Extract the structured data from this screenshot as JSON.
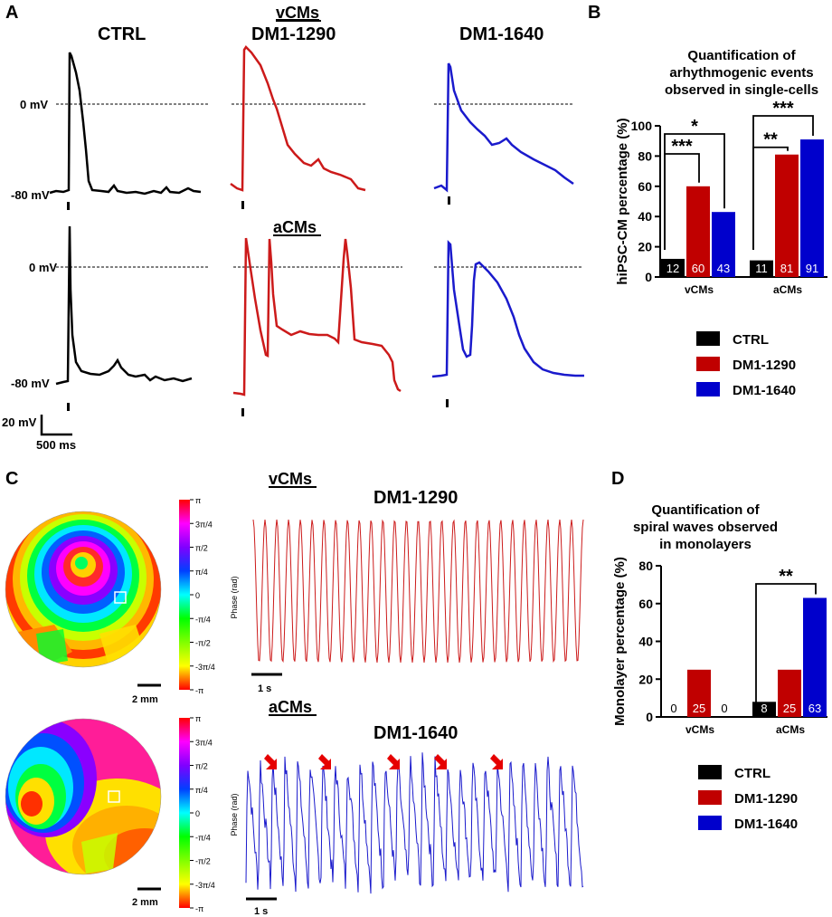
{
  "panels": {
    "A": "A",
    "B": "B",
    "C": "C",
    "D": "D"
  },
  "panelA": {
    "group_vcms": "vCMs",
    "group_acms": "aCMs",
    "col_ctrl": "CTRL",
    "col_dm1290": "DM1-1290",
    "col_dm1640": "DM1-1640",
    "row1_zero": "0 mV",
    "row1_rest": "-80 mV",
    "row2_zero": "0 mV",
    "row2_rest": "-80 mV",
    "scale_v": "20 mV",
    "scale_t": "500 ms"
  },
  "panelC": {
    "group_vcms": "vCMs",
    "group_acms": "aCMs",
    "title_top": "DM1-1290",
    "title_bottom": "DM1-1640",
    "phase_axis": "Phase (rad)",
    "phase_ticks": [
      "π",
      "3π/4",
      "π/2",
      "π/4",
      "0",
      "-π/4",
      "-π/2",
      "-3π/4",
      "-π"
    ],
    "map_scale": "2 mm",
    "time_scale": "1 s"
  },
  "colors": {
    "ctrl": "#000000",
    "dm1290": "#c00000",
    "dm1640": "#0000cc",
    "trace_red": "#cc1a1a",
    "trace_blue": "#1a1acc",
    "arrow": "#e60000"
  },
  "chart_data": [
    {
      "id": "B",
      "type": "bar",
      "title_lines": [
        "Quantification of",
        "arhythmogenic events",
        "observed in single-cells"
      ],
      "ylabel": "hiPSC-CM percentage (%)",
      "xlabel": "",
      "ylim": [
        0,
        100
      ],
      "yticks": [
        0,
        20,
        40,
        60,
        80,
        100
      ],
      "categories": [
        "vCMs",
        "aCMs"
      ],
      "series": [
        {
          "name": "CTRL",
          "values": [
            12,
            11
          ]
        },
        {
          "name": "DM1-1290",
          "values": [
            60,
            81
          ]
        },
        {
          "name": "DM1-1640",
          "values": [
            43,
            91
          ]
        }
      ],
      "significance": [
        {
          "group": 0,
          "from": 0,
          "to": 1,
          "label": "***"
        },
        {
          "group": 0,
          "from": 0,
          "to": 2,
          "label": "*"
        },
        {
          "group": 1,
          "from": 0,
          "to": 1,
          "label": "**"
        },
        {
          "group": 1,
          "from": 0,
          "to": 2,
          "label": "***"
        }
      ],
      "legend": [
        "CTRL",
        "DM1-1290",
        "DM1-1640"
      ]
    },
    {
      "id": "D",
      "type": "bar",
      "title_lines": [
        "Quantification of",
        "spiral waves observed",
        "in monolayers"
      ],
      "ylabel": "Monolayer percentage (%)",
      "xlabel": "",
      "ylim": [
        0,
        80
      ],
      "yticks": [
        0,
        20,
        40,
        60,
        80
      ],
      "categories": [
        "vCMs",
        "aCMs"
      ],
      "series": [
        {
          "name": "CTRL",
          "values": [
            0,
            8
          ]
        },
        {
          "name": "DM1-1290",
          "values": [
            25,
            25
          ]
        },
        {
          "name": "DM1-1640",
          "values": [
            0,
            63
          ]
        }
      ],
      "significance": [
        {
          "group": 1,
          "from": 0,
          "to": 2,
          "label": "**"
        }
      ],
      "legend": [
        "CTRL",
        "DM1-1290",
        "DM1-1640"
      ]
    }
  ]
}
